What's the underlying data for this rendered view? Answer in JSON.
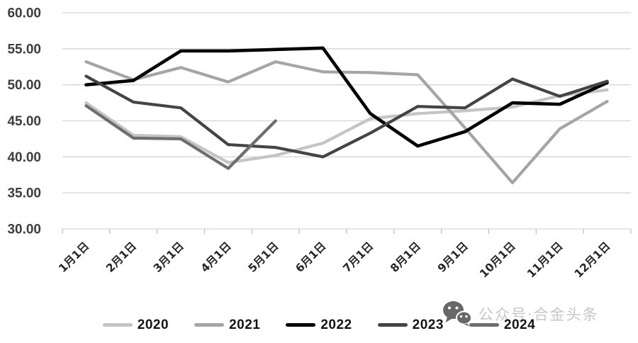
{
  "chart_data": {
    "type": "line",
    "title": "",
    "xlabel": "",
    "ylabel": "",
    "categories": [
      "1月1日",
      "2月1日",
      "3月1日",
      "4月1日",
      "5月1日",
      "6月1日",
      "7月1日",
      "8月1日",
      "9月1日",
      "10月1日",
      "11月1日",
      "12月1日"
    ],
    "series": [
      {
        "name": "2020",
        "color": "#c4c4c4",
        "values": [
          47.5,
          43.0,
          42.8,
          39.2,
          40.2,
          41.9,
          45.3,
          46.0,
          46.4,
          46.9,
          48.5,
          49.3
        ]
      },
      {
        "name": "2021",
        "color": "#a5a5a5",
        "values": [
          53.2,
          50.7,
          52.4,
          50.4,
          53.2,
          51.8,
          51.7,
          51.4,
          44.0,
          36.4,
          43.9,
          47.7
        ]
      },
      {
        "name": "2022",
        "color": "#000000",
        "values": [
          50.0,
          50.6,
          54.7,
          54.7,
          54.9,
          55.1,
          46.0,
          41.5,
          43.5,
          47.5,
          47.3,
          50.3
        ]
      },
      {
        "name": "2023",
        "color": "#444444",
        "values": [
          51.2,
          47.6,
          46.8,
          41.7,
          41.3,
          40.0,
          43.3,
          47.0,
          46.8,
          50.8,
          48.4,
          50.5
        ]
      },
      {
        "name": "2024",
        "color": "#6e6e6e",
        "values": [
          47.1,
          42.6,
          42.5,
          38.4,
          45.0,
          null,
          null,
          null,
          null,
          null,
          null,
          null
        ]
      }
    ],
    "ylim": [
      30,
      60
    ],
    "ytick_step": 5,
    "ytick_labels": [
      "60.00",
      "55.00",
      "50.00",
      "45.00",
      "40.00",
      "35.00",
      "30.00"
    ],
    "grid": "horizontal-only",
    "legend_position": "bottom",
    "x_label_rotation_deg": 45
  },
  "watermark": {
    "icon": "wechat-icon",
    "text": "公众号·合金头条"
  },
  "colors": {
    "gridline": "#d6d6d6",
    "tick": "#bdbdbd",
    "watermark_text": "#c7c7c7",
    "watermark_icon": "#686868"
  }
}
